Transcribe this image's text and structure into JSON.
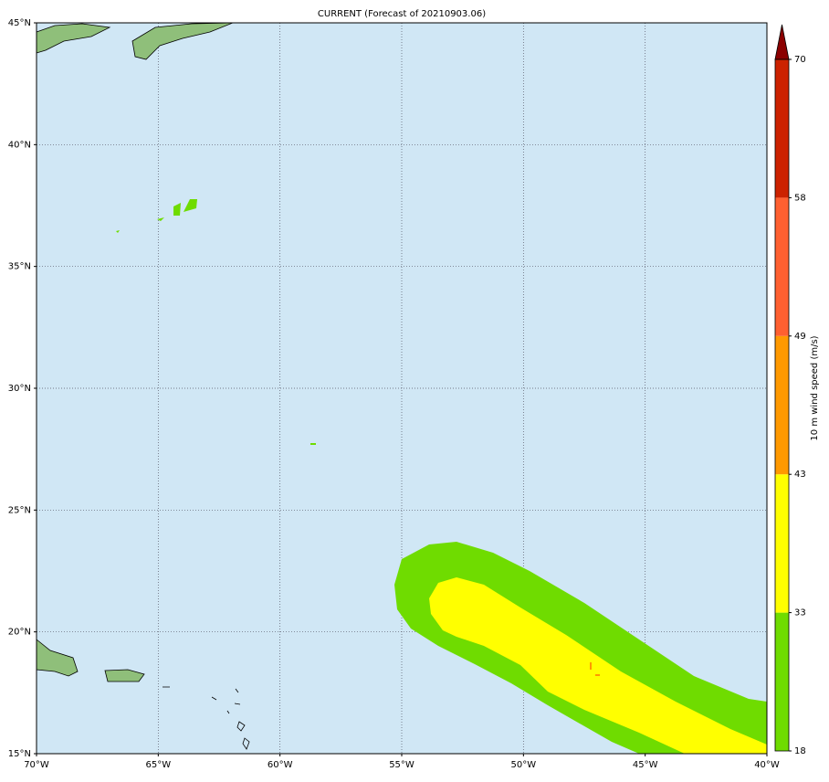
{
  "chart_data": {
    "type": "map",
    "title": "CURRENT (Forecast of 20210903.06)",
    "xlim": [
      -70,
      -40
    ],
    "ylim": [
      15,
      45
    ],
    "xticks": [
      {
        "value": -70,
        "label": "70°W"
      },
      {
        "value": -65,
        "label": "65°W"
      },
      {
        "value": -60,
        "label": "60°W"
      },
      {
        "value": -55,
        "label": "55°W"
      },
      {
        "value": -50,
        "label": "50°W"
      },
      {
        "value": -45,
        "label": "45°W"
      },
      {
        "value": -40,
        "label": "40°W"
      }
    ],
    "yticks": [
      {
        "value": 15,
        "label": "15°N"
      },
      {
        "value": 20,
        "label": "20°N"
      },
      {
        "value": 25,
        "label": "25°N"
      },
      {
        "value": 30,
        "label": "30°N"
      },
      {
        "value": 35,
        "label": "35°N"
      },
      {
        "value": 40,
        "label": "40°N"
      },
      {
        "value": 45,
        "label": "45°N"
      }
    ],
    "grid": true,
    "colorbar": {
      "label": "10 m wind speed (m/s)",
      "levels": [
        18,
        33,
        43,
        49,
        58,
        70
      ],
      "colors": [
        "#6fdc00",
        "#ffff00",
        "#ff9900",
        "#ff6030",
        "#cc2200"
      ],
      "extend_color": "#8b0000"
    }
  }
}
